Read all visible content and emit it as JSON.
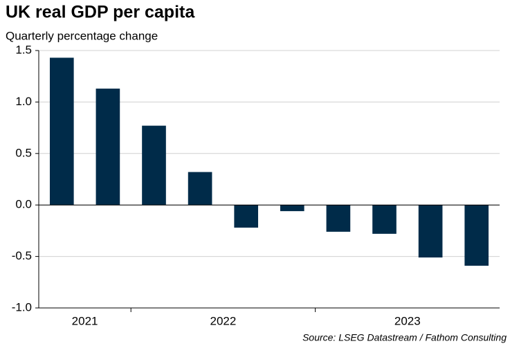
{
  "chart_data": {
    "type": "bar",
    "title": "UK real GDP per capita",
    "subtitle": "Quarterly percentage change",
    "source": "Source: LSEG Datastream / Fathom Consulting",
    "values": [
      1.43,
      1.13,
      0.77,
      0.32,
      -0.22,
      -0.06,
      -0.26,
      -0.28,
      -0.51,
      -0.59
    ],
    "groups": [
      {
        "label": "2021",
        "size": 2
      },
      {
        "label": "2022",
        "size": 4
      },
      {
        "label": "2023",
        "size": 4
      }
    ],
    "color": "#002b49",
    "ylim": [
      -1.0,
      1.5
    ],
    "yticks": [
      {
        "value": -1.0,
        "label": "-1.0"
      },
      {
        "value": -0.5,
        "label": "-0.5"
      },
      {
        "value": 0,
        "label": "0.0"
      },
      {
        "value": 0.5,
        "label": "0.5"
      },
      {
        "value": 1.0,
        "label": "1.0"
      },
      {
        "value": 1.5,
        "label": "1.5"
      }
    ],
    "grid": true
  }
}
